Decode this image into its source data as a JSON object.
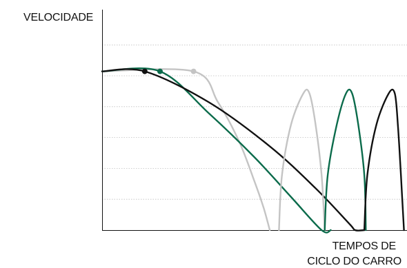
{
  "chart_data": {
    "type": "line",
    "title": "",
    "ylabel": "VELOCIDADE",
    "xlabel_lines": [
      "TEMPOS DE",
      "CICLO DO CARRO"
    ],
    "xlim": [
      0,
      100
    ],
    "ylim": [
      0,
      100
    ],
    "ygrid": [
      14,
      28,
      42,
      56,
      70,
      84
    ],
    "grid": "horizontal dotted",
    "legend": "none",
    "colors": {
      "dark": "#111111",
      "green": "#0b6b4b",
      "light": "#c4c4c4"
    },
    "series": [
      {
        "color_key": "light",
        "marker": {
          "x": 30,
          "y": 72
        },
        "path": [
          [
            0,
            72
          ],
          [
            30,
            72
          ],
          [
            38,
            58
          ],
          [
            45,
            40
          ],
          [
            50,
            22
          ],
          [
            53,
            10
          ],
          [
            55,
            0
          ]
        ]
      },
      {
        "color_key": "green",
        "marker": {
          "x": 19,
          "y": 72
        },
        "path": [
          [
            0,
            72
          ],
          [
            19,
            72
          ],
          [
            35,
            53
          ],
          [
            50,
            33
          ],
          [
            62,
            15
          ],
          [
            72,
            0
          ],
          [
            75,
            0
          ]
        ]
      },
      {
        "color_key": "dark",
        "marker": {
          "x": 14,
          "y": 72
        },
        "path": [
          [
            0,
            72
          ],
          [
            14,
            72
          ],
          [
            35,
            58
          ],
          [
            55,
            38
          ],
          [
            70,
            19
          ],
          [
            81,
            3
          ],
          [
            83,
            0
          ],
          [
            86,
            0
          ]
        ]
      },
      {
        "color_key": "light",
        "marker": null,
        "path": [
          [
            58,
            0
          ],
          [
            59,
            25
          ],
          [
            62,
            48
          ],
          [
            66,
            62
          ],
          [
            68,
            62
          ],
          [
            70,
            48
          ],
          [
            72,
            25
          ],
          [
            73,
            0
          ]
        ]
      },
      {
        "color_key": "green",
        "marker": null,
        "path": [
          [
            73,
            0
          ],
          [
            74,
            25
          ],
          [
            77,
            48
          ],
          [
            80,
            62
          ],
          [
            82,
            62
          ],
          [
            84,
            48
          ],
          [
            86,
            25
          ],
          [
            86.5,
            0
          ]
        ]
      },
      {
        "color_key": "dark",
        "marker": null,
        "path": [
          [
            86,
            0
          ],
          [
            87,
            25
          ],
          [
            90,
            48
          ],
          [
            94,
            62
          ],
          [
            96,
            62
          ],
          [
            97,
            48
          ],
          [
            98,
            25
          ],
          [
            99,
            0
          ]
        ]
      }
    ]
  }
}
